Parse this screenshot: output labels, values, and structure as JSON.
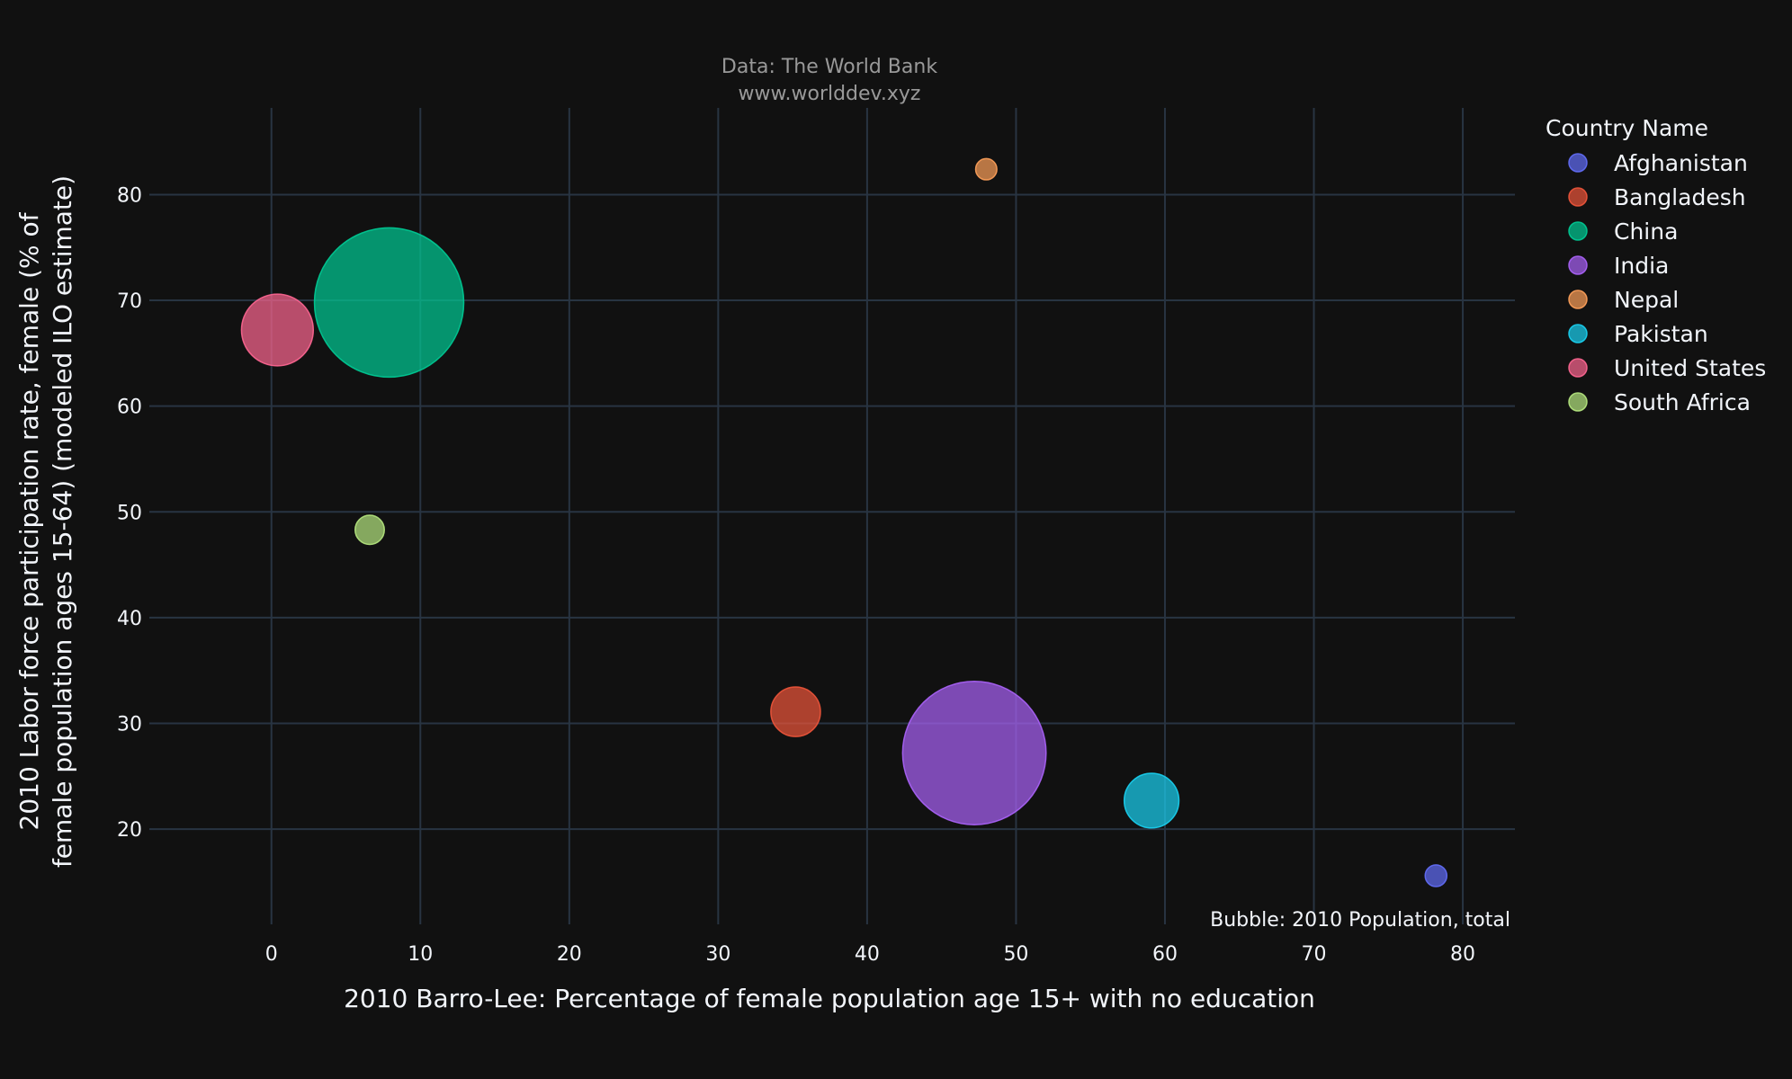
{
  "chart_data": {
    "type": "scatter",
    "subtitle_line1": "Data: The World Bank",
    "subtitle_line2": "www.worlddev.xyz",
    "xlabel": "2010 Barro-Lee: Percentage of female population age 15+ with no education",
    "ylabel_line1": "2010 Labor force participation rate, female (% of",
    "ylabel_line2": "female population ages 15-64) (modeled ILO estimate)",
    "xlim": [
      -8.2,
      83.5
    ],
    "ylim": [
      11,
      88.2
    ],
    "xticks": [
      0,
      10,
      20,
      30,
      40,
      50,
      60,
      70,
      80
    ],
    "yticks": [
      20,
      30,
      40,
      50,
      60,
      70,
      80
    ],
    "legend_title": "Country Name",
    "legend_position": "top-right",
    "annotation": "Bubble: 2010 Population, total",
    "grid": true,
    "series": [
      {
        "name": "Afghanistan",
        "x": 78.2,
        "y": 15.6,
        "size": 28.2,
        "color": "#636efa"
      },
      {
        "name": "Bangladesh",
        "x": 35.2,
        "y": 31.1,
        "size": 147.6,
        "color": "#EF553B"
      },
      {
        "name": "China",
        "x": 7.9,
        "y": 69.8,
        "size": 1337.7,
        "color": "#00cc96"
      },
      {
        "name": "India",
        "x": 47.2,
        "y": 27.2,
        "size": 1234.3,
        "color": "#ab63fa"
      },
      {
        "name": "Nepal",
        "x": 48.0,
        "y": 82.4,
        "size": 27.0,
        "color": "#FFA15A"
      },
      {
        "name": "Pakistan",
        "x": 59.1,
        "y": 22.7,
        "size": 179.4,
        "color": "#19d3f3"
      },
      {
        "name": "United States",
        "x": 0.4,
        "y": 67.2,
        "size": 309.3,
        "color": "#FF6692"
      },
      {
        "name": "South Africa",
        "x": 6.6,
        "y": 48.3,
        "size": 51.2,
        "color": "#B6E880"
      }
    ]
  }
}
